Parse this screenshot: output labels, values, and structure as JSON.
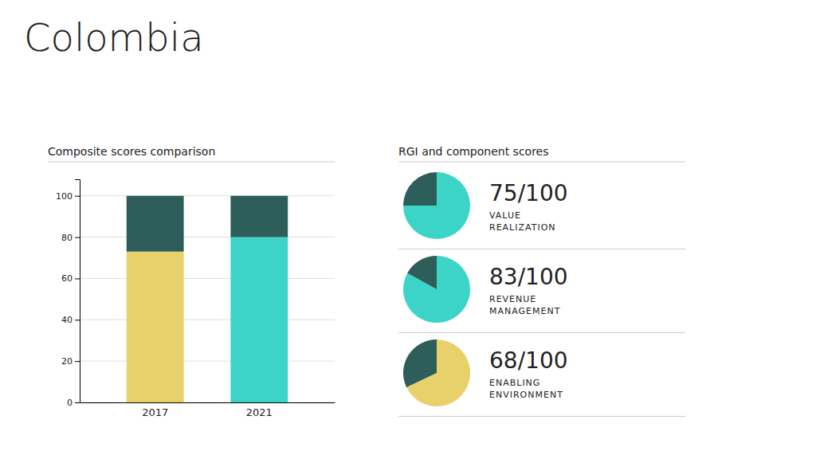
{
  "title": "Colombia",
  "chart_data": [
    {
      "type": "bar",
      "title": "Composite scores comparison",
      "categories": [
        "2017",
        "2021"
      ],
      "stacked": true,
      "series": [
        {
          "values": [
            73,
            80
          ],
          "colors": [
            "#e8d06a",
            "#3dd4c8"
          ]
        },
        {
          "values": [
            27,
            20
          ],
          "color": "#2d5e5a"
        }
      ],
      "ylim": [
        0,
        108
      ],
      "yticks": [
        0,
        20,
        40,
        60,
        80,
        100
      ],
      "grid": true
    },
    {
      "type": "pie",
      "title": "RGI and component scores",
      "data_labels": true,
      "series": [
        {
          "name": "VALUE\nREALIZATION",
          "values": [
            75,
            25
          ],
          "colors": [
            "#3dd4c8",
            "#2d5e5a"
          ],
          "value_labels": [
            "75/100",
            null
          ]
        },
        {
          "name": "REVENUE\nMANAGEMENT",
          "values": [
            83,
            17
          ],
          "colors": [
            "#3dd4c8",
            "#2d5e5a"
          ],
          "value_labels": [
            "83/100",
            null
          ]
        },
        {
          "name": "ENABLING\nENVIRONMENT",
          "values": [
            68,
            32
          ],
          "colors": [
            "#e8d06a",
            "#2d5e5a"
          ],
          "value_labels": [
            "68/100",
            null
          ]
        }
      ]
    }
  ]
}
